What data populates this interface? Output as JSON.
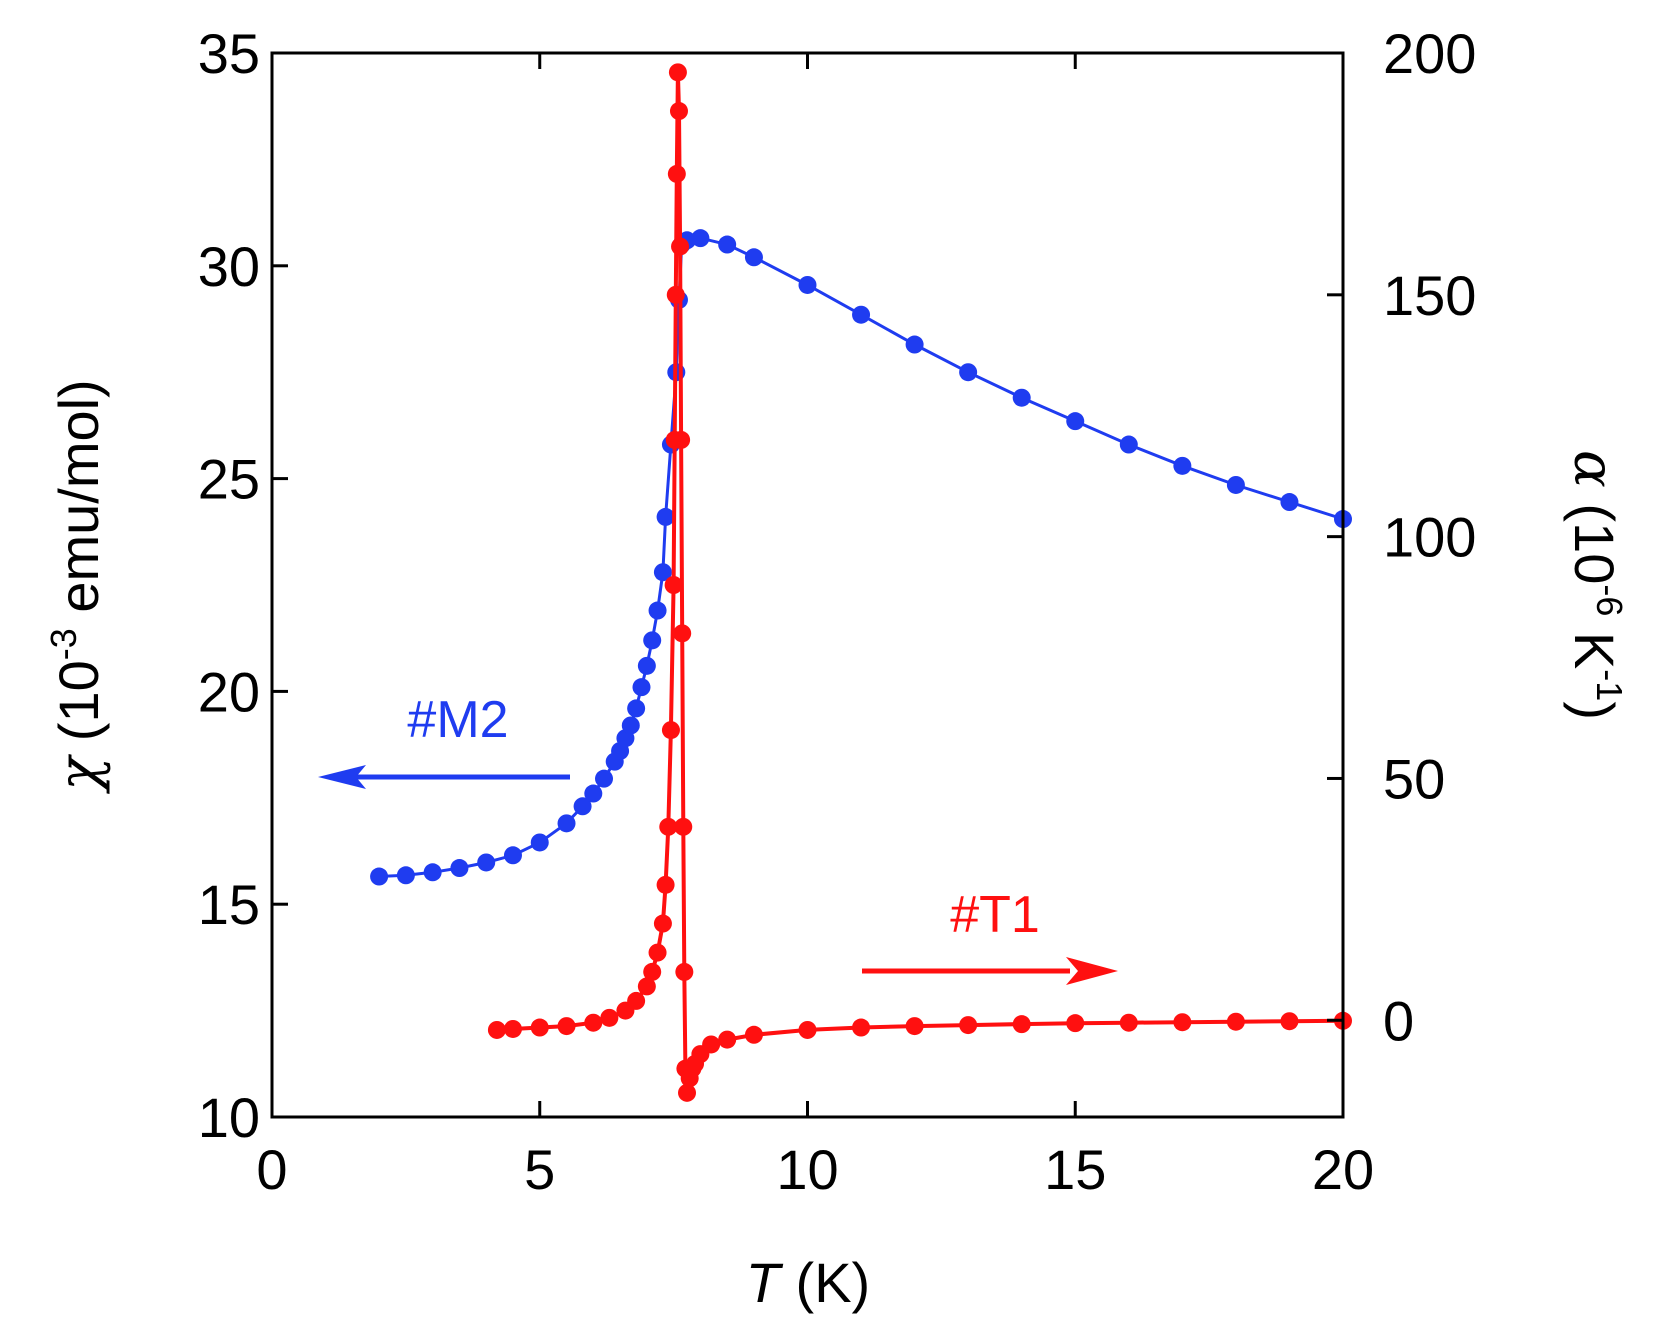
{
  "chart_data": {
    "type": "scatter",
    "xlabel": {
      "italic": "T",
      "rest": " (K)"
    },
    "ylabel_left": {
      "symbol": "χ",
      "text": " (10",
      "sup": "-3",
      "tail": " emu/mol)"
    },
    "ylabel_right": {
      "symbol": "α",
      "text": " (10",
      "sup": "-6",
      "mid": " K",
      "sup2": "-1",
      "tail": ")"
    },
    "xlim": [
      0,
      20
    ],
    "ylim_left": [
      10,
      35
    ],
    "ylim_right": [
      -20,
      200
    ],
    "xticks": [
      0,
      5,
      10,
      15,
      20
    ],
    "yticks_left": [
      10,
      15,
      20,
      25,
      30,
      35
    ],
    "yticks_right": [
      0,
      50,
      100,
      150,
      200
    ],
    "series": [
      {
        "name": "#M2",
        "axis": "left",
        "color": "#1f3cf0",
        "annotation": {
          "label": "#M2",
          "arrow": "left"
        },
        "x": [
          2.0,
          2.5,
          3.0,
          3.5,
          4.0,
          4.5,
          5.0,
          5.5,
          5.8,
          6.0,
          6.2,
          6.4,
          6.5,
          6.6,
          6.7,
          6.8,
          6.9,
          7.0,
          7.1,
          7.2,
          7.3,
          7.35,
          7.45,
          7.55,
          7.6,
          7.65,
          7.75,
          8.0,
          8.5,
          9.0,
          10.0,
          11.0,
          12.0,
          13.0,
          14.0,
          15.0,
          16.0,
          17.0,
          18.0,
          19.0,
          20.0
        ],
        "y": [
          15.65,
          15.68,
          15.75,
          15.85,
          15.98,
          16.15,
          16.45,
          16.9,
          17.3,
          17.6,
          17.95,
          18.35,
          18.6,
          18.9,
          19.2,
          19.6,
          20.1,
          20.6,
          21.2,
          21.9,
          22.8,
          24.1,
          25.8,
          27.5,
          29.2,
          30.5,
          30.6,
          30.65,
          30.5,
          30.2,
          29.55,
          28.85,
          28.15,
          27.5,
          26.9,
          26.35,
          25.8,
          25.3,
          24.85,
          24.45,
          24.05
        ]
      },
      {
        "name": "#T1",
        "axis": "right",
        "color": "#ff1010",
        "annotation": {
          "label": "#T1",
          "arrow": "right"
        },
        "x": [
          4.2,
          4.5,
          5.0,
          5.5,
          6.0,
          6.3,
          6.6,
          6.8,
          7.0,
          7.1,
          7.2,
          7.3,
          7.35,
          7.4,
          7.45,
          7.5,
          7.52,
          7.54,
          7.56,
          7.58,
          7.6,
          7.62,
          7.64,
          7.66,
          7.68,
          7.7,
          7.72,
          7.75,
          7.8,
          7.85,
          7.9,
          8.0,
          8.2,
          8.5,
          9.0,
          10.0,
          11.0,
          12.0,
          13.0,
          14.0,
          15.0,
          16.0,
          17.0,
          18.0,
          19.0,
          20.0
        ],
        "y": [
          -2,
          -1.8,
          -1.5,
          -1.2,
          -0.5,
          0.5,
          2,
          4,
          7,
          10,
          14,
          20,
          28,
          40,
          60,
          90,
          120,
          150,
          175,
          196,
          188,
          160,
          120,
          80,
          40,
          10,
          -10,
          -15,
          -12,
          -10,
          -9,
          -7,
          -5,
          -4,
          -3,
          -2,
          -1.5,
          -1.2,
          -1.0,
          -0.8,
          -0.6,
          -0.5,
          -0.4,
          -0.3,
          -0.2,
          -0.1
        ]
      }
    ]
  }
}
